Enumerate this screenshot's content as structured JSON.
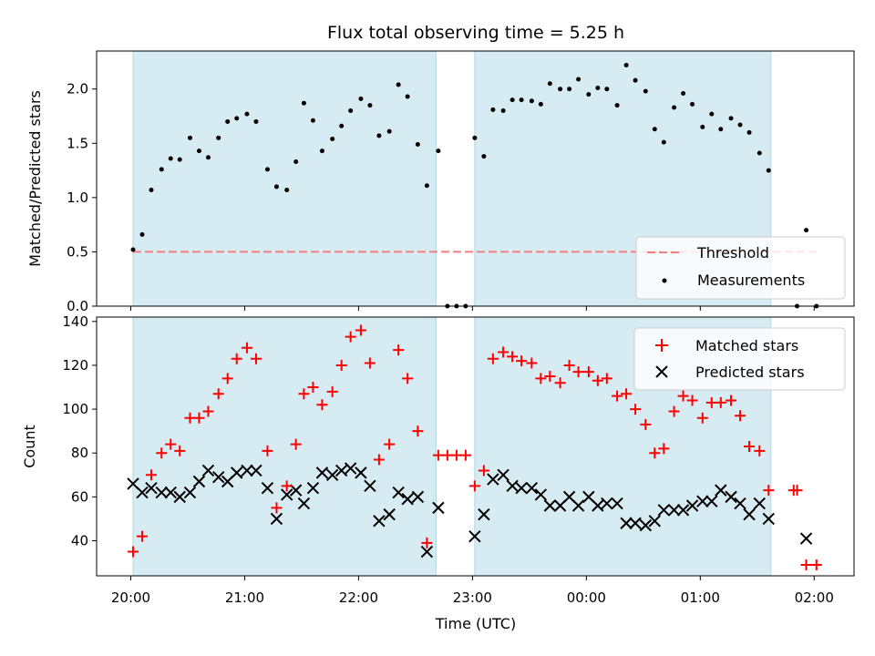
{
  "chart_data": {
    "title": "Flux total observing time = 5.25 h",
    "type": "scatter",
    "xlabel": "Time (UTC)",
    "x_ticks": [
      "20:00",
      "21:00",
      "22:00",
      "23:00",
      "00:00",
      "01:00",
      "02:00"
    ],
    "x_tick_hours": [
      20,
      21,
      22,
      23,
      24,
      25,
      26
    ],
    "xlim_hours": [
      19.7,
      26.35
    ],
    "shaded_intervals_hours": [
      [
        20.02,
        22.68
      ],
      [
        23.02,
        25.62
      ]
    ],
    "colors": {
      "shade": "#add8e6",
      "threshold": "#f08080",
      "measurements": "#000000",
      "matched": "#ff0000",
      "predicted": "#000000"
    },
    "top_panel": {
      "ylabel": "Matched/Predicted stars",
      "ylim": [
        0,
        2.35
      ],
      "y_ticks": [
        "0.0",
        "0.5",
        "1.0",
        "1.5",
        "2.0"
      ],
      "y_tick_values": [
        0,
        0.5,
        1.0,
        1.5,
        2.0
      ],
      "legend_position": "lower right",
      "threshold": {
        "name": "Threshold",
        "value": 0.5,
        "x_range": [
          20.02,
          26.05
        ]
      },
      "measurements": {
        "name": "Measurements",
        "x": [
          20.02,
          20.1,
          20.18,
          20.27,
          20.35,
          20.43,
          20.52,
          20.6,
          20.68,
          20.77,
          20.85,
          20.93,
          21.02,
          21.1,
          21.2,
          21.28,
          21.37,
          21.45,
          21.52,
          21.6,
          21.68,
          21.77,
          21.85,
          21.93,
          22.02,
          22.1,
          22.18,
          22.27,
          22.35,
          22.43,
          22.52,
          22.6,
          22.7,
          22.78,
          22.86,
          22.94,
          23.02,
          23.1,
          23.18,
          23.27,
          23.35,
          23.43,
          23.52,
          23.6,
          23.68,
          23.77,
          23.85,
          23.93,
          24.02,
          24.1,
          24.18,
          24.27,
          24.35,
          24.43,
          24.52,
          24.6,
          24.68,
          24.77,
          24.85,
          24.93,
          25.02,
          25.1,
          25.18,
          25.27,
          25.35,
          25.43,
          25.52,
          25.6,
          25.85,
          25.93,
          26.02
        ],
        "y": [
          0.52,
          0.66,
          1.07,
          1.26,
          1.36,
          1.35,
          1.55,
          1.43,
          1.37,
          1.55,
          1.7,
          1.73,
          1.77,
          1.7,
          1.26,
          1.1,
          1.07,
          1.33,
          1.87,
          1.71,
          1.43,
          1.54,
          1.66,
          1.8,
          1.91,
          1.85,
          1.57,
          1.61,
          2.04,
          1.93,
          1.49,
          1.11,
          1.43,
          0.0,
          0.0,
          0.0,
          1.55,
          1.38,
          1.81,
          1.8,
          1.9,
          1.9,
          1.89,
          1.86,
          2.05,
          2.0,
          2.0,
          2.09,
          1.95,
          2.01,
          2.0,
          1.85,
          2.22,
          2.08,
          1.98,
          1.63,
          1.51,
          1.83,
          1.96,
          1.86,
          1.65,
          1.77,
          1.63,
          1.73,
          1.67,
          1.6,
          1.41,
          1.25,
          0.0,
          0.7,
          0.0
        ]
      }
    },
    "bottom_panel": {
      "ylabel": "Count",
      "ylim": [
        24,
        142
      ],
      "y_ticks": [
        "40",
        "60",
        "80",
        "100",
        "120",
        "140"
      ],
      "y_tick_values": [
        40,
        60,
        80,
        100,
        120,
        140
      ],
      "legend_position": "upper right",
      "matched": {
        "name": "Matched stars",
        "x": [
          20.02,
          20.1,
          20.18,
          20.27,
          20.35,
          20.43,
          20.52,
          20.6,
          20.68,
          20.77,
          20.85,
          20.93,
          21.02,
          21.1,
          21.2,
          21.28,
          21.37,
          21.45,
          21.52,
          21.6,
          21.68,
          21.77,
          21.85,
          21.93,
          22.02,
          22.1,
          22.18,
          22.27,
          22.35,
          22.43,
          22.52,
          22.6,
          22.7,
          22.78,
          22.86,
          22.94,
          23.02,
          23.1,
          23.18,
          23.27,
          23.35,
          23.43,
          23.52,
          23.6,
          23.68,
          23.77,
          23.85,
          23.93,
          24.02,
          24.1,
          24.18,
          24.27,
          24.35,
          24.43,
          24.52,
          24.6,
          24.68,
          24.77,
          24.85,
          24.93,
          25.02,
          25.1,
          25.18,
          25.27,
          25.35,
          25.43,
          25.52,
          25.6,
          25.82,
          25.85,
          25.93,
          26.02
        ],
        "y": [
          35,
          42,
          70,
          80,
          84,
          81,
          96,
          96,
          99,
          107,
          114,
          123,
          128,
          123,
          81,
          55,
          65,
          84,
          107,
          110,
          102,
          108,
          120,
          133,
          136,
          121,
          77,
          84,
          127,
          114,
          90,
          39,
          79,
          79,
          79,
          79,
          65,
          72,
          123,
          126,
          124,
          122,
          121,
          114,
          115,
          112,
          120,
          117,
          117,
          113,
          114,
          106,
          107,
          100,
          93,
          80,
          82,
          99,
          106,
          104,
          96,
          103,
          103,
          104,
          97,
          83,
          81,
          63,
          63,
          63,
          29,
          29
        ]
      },
      "predicted": {
        "name": "Predicted stars",
        "x": [
          20.02,
          20.1,
          20.18,
          20.27,
          20.35,
          20.43,
          20.52,
          20.6,
          20.68,
          20.77,
          20.85,
          20.93,
          21.02,
          21.1,
          21.2,
          21.28,
          21.37,
          21.45,
          21.52,
          21.6,
          21.68,
          21.77,
          21.85,
          21.93,
          22.02,
          22.1,
          22.18,
          22.27,
          22.35,
          22.43,
          22.52,
          22.6,
          22.7,
          23.02,
          23.1,
          23.18,
          23.27,
          23.35,
          23.43,
          23.52,
          23.6,
          23.68,
          23.77,
          23.85,
          23.93,
          24.02,
          24.1,
          24.18,
          24.27,
          24.35,
          24.43,
          24.52,
          24.6,
          24.68,
          24.77,
          24.85,
          24.93,
          25.02,
          25.1,
          25.18,
          25.27,
          25.35,
          25.43,
          25.52,
          25.6,
          25.93
        ],
        "y": [
          66,
          62,
          64,
          62,
          62,
          60,
          62,
          67,
          72,
          69,
          67,
          71,
          72,
          72,
          64,
          50,
          61,
          63,
          57,
          64,
          71,
          70,
          72,
          73,
          71,
          65,
          49,
          52,
          62,
          59,
          60,
          35,
          55,
          42,
          52,
          68,
          70,
          65,
          64,
          64,
          61,
          56,
          56,
          60,
          56,
          60,
          56,
          57,
          57,
          48,
          48,
          47,
          49,
          54,
          54,
          54,
          56,
          58,
          58,
          63,
          60,
          57,
          52,
          57,
          50,
          41
        ]
      }
    }
  }
}
